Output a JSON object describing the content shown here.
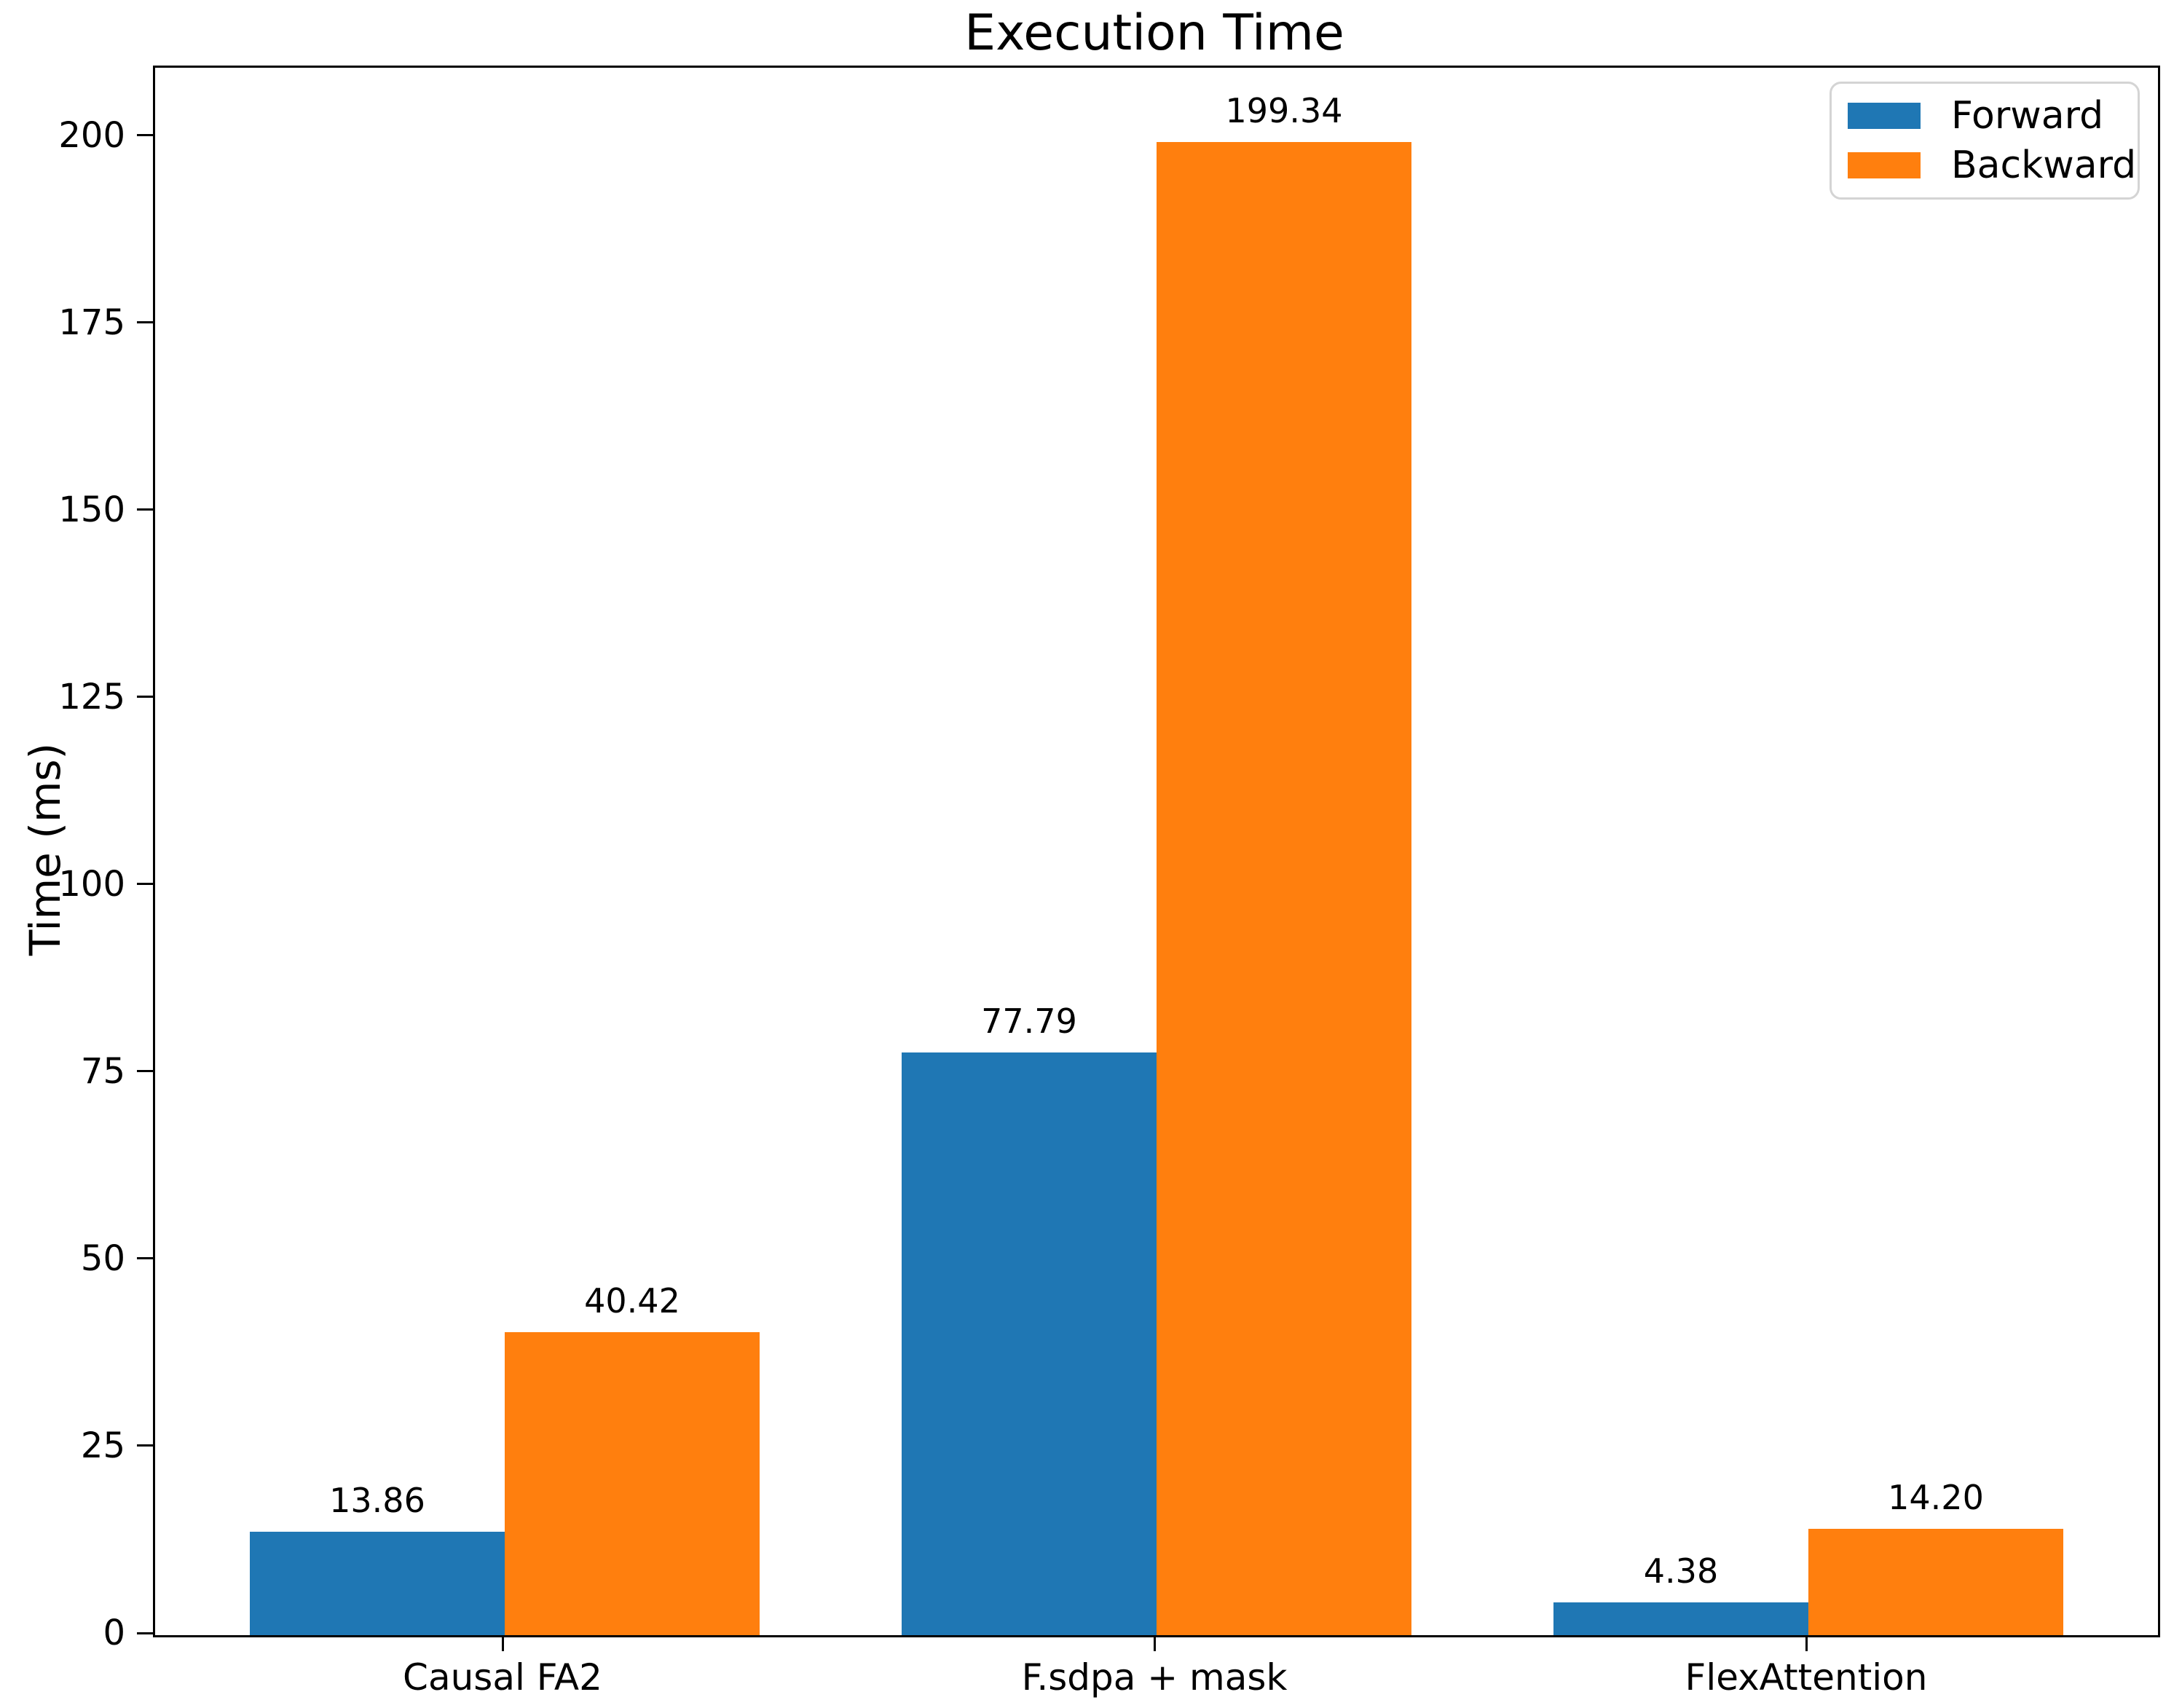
{
  "title": "Execution Time",
  "chart_data": {
    "type": "bar",
    "title": "Execution Time",
    "xlabel": "",
    "ylabel": "Time (ms)",
    "categories": [
      "Causal FA2",
      "F.sdpa + mask",
      "FlexAttention"
    ],
    "series": [
      {
        "name": "Forward",
        "color": "#1f77b4",
        "values": [
          13.86,
          77.79,
          4.38
        ],
        "labels": [
          "13.86",
          "77.79",
          "4.38"
        ]
      },
      {
        "name": "Backward",
        "color": "#ff7f0e",
        "values": [
          40.42,
          199.34,
          14.2
        ],
        "labels": [
          "40.42",
          "199.34",
          "14.20"
        ]
      }
    ],
    "yticks": [
      0,
      25,
      50,
      75,
      100,
      125,
      150,
      175,
      200
    ],
    "ylim": [
      0,
      209.3
    ],
    "grid": false,
    "legend": {
      "position": "upper right",
      "entries": [
        "Forward",
        "Backward"
      ]
    },
    "colors": {
      "forward": "#1f77b4",
      "backward": "#ff7f0e",
      "spine": "#000000",
      "legend_border": "#d4d4d4"
    }
  }
}
